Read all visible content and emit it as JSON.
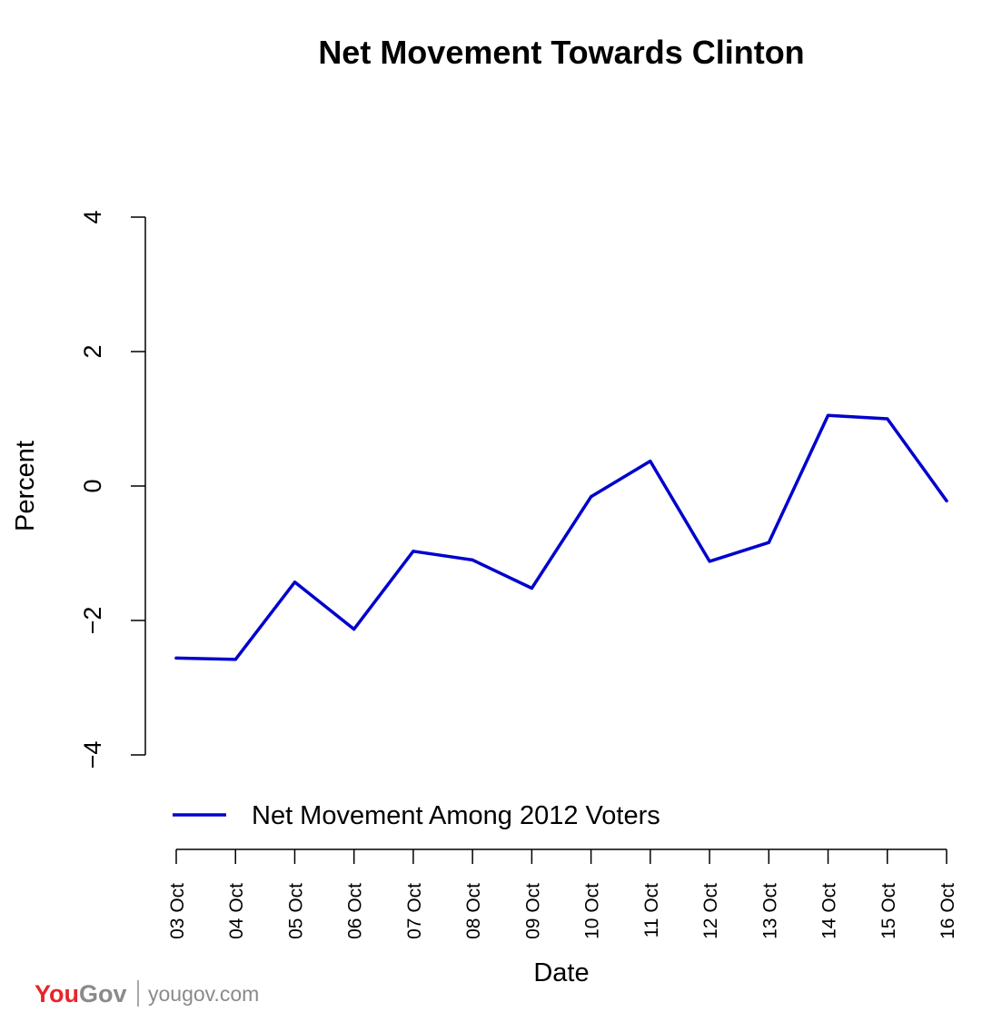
{
  "chart_data": {
    "type": "line",
    "title": "Net Movement Towards Clinton",
    "xlabel": "Date",
    "ylabel": "Percent",
    "ylim": [
      -4,
      4
    ],
    "yticks": [
      -4,
      -2,
      0,
      2,
      4
    ],
    "yticks_labels": [
      "−4",
      "−2",
      "0",
      "2",
      "4"
    ],
    "categories": [
      "03 Oct",
      "04 Oct",
      "05 Oct",
      "06 Oct",
      "07 Oct",
      "08 Oct",
      "09 Oct",
      "10 Oct",
      "11 Oct",
      "12 Oct",
      "13 Oct",
      "14 Oct",
      "15 Oct",
      "16 Oct"
    ],
    "series": [
      {
        "name": "Net Movement Among 2012 Voters",
        "color": "#0000cd",
        "values": [
          -2.56,
          -2.58,
          -1.43,
          -2.13,
          -0.97,
          -1.1,
          -1.52,
          -0.16,
          0.37,
          -1.12,
          -0.84,
          1.05,
          1.0,
          -0.22
        ]
      }
    ],
    "grid": false,
    "legend_position": "bottom-left"
  },
  "branding": {
    "logo_you": "You",
    "logo_gov": "Gov",
    "url": "yougov.com",
    "logo_red": "#e8242a",
    "logo_grey": "#8a8a8a"
  }
}
